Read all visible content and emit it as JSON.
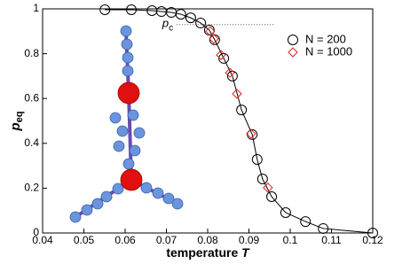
{
  "chart_data": {
    "type": "scatter",
    "xlabel": {
      "text": "temperature",
      "variable": "T"
    },
    "ylabel": {
      "text": "p",
      "subscript": "eq"
    },
    "annotation": {
      "text": "p",
      "subscript": "c"
    },
    "reference_line": {
      "y": 0.93,
      "x": [
        0.0725,
        0.096
      ]
    },
    "xlim": [
      0.04,
      0.12
    ],
    "xticks": [
      0.04,
      0.05,
      0.06,
      0.07,
      0.08,
      0.09,
      0.1,
      0.11,
      0.12
    ],
    "ylim": [
      0,
      1
    ],
    "yticks": [
      0,
      0.2,
      0.4,
      0.6,
      0.8,
      1
    ],
    "legend": "top-right",
    "series": [
      {
        "name": "N = 200",
        "color": "#000000",
        "marker": "circle",
        "line": true,
        "x": [
          0.0551,
          0.0615,
          0.0665,
          0.0688,
          0.0712,
          0.0735,
          0.0759,
          0.0783,
          0.0804,
          0.0817,
          0.0839,
          0.086,
          0.0882,
          0.0908,
          0.092,
          0.0933,
          0.0955,
          0.0989,
          0.1037,
          0.108,
          0.12
        ],
        "values": [
          0.996,
          0.996,
          0.992,
          0.988,
          0.984,
          0.976,
          0.96,
          0.937,
          0.905,
          0.862,
          0.779,
          0.7,
          0.549,
          0.439,
          0.328,
          0.241,
          0.162,
          0.091,
          0.051,
          0.02,
          0
        ]
      },
      {
        "name": "N = 1000",
        "color": "#e02020",
        "marker": "diamond",
        "line": false,
        "x": [
          0.0806,
          0.0815,
          0.0832,
          0.0854,
          0.0871,
          0.0905,
          0.0946
        ],
        "values": [
          0.9,
          0.866,
          0.794,
          0.715,
          0.621,
          0.443,
          0.202
        ]
      }
    ]
  }
}
